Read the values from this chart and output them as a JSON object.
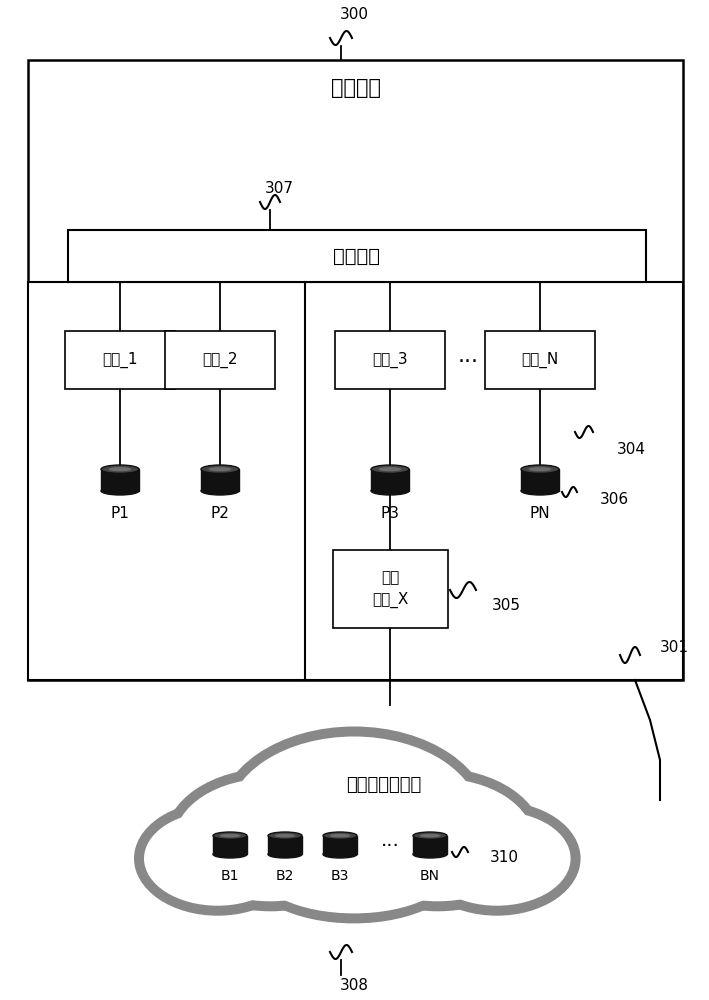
{
  "bg_color": "#ffffff",
  "title": "存储系统",
  "network_label": "网络接口",
  "cloud_label": "云或存储服务化",
  "node_labels": [
    "节点_1",
    "节点_2",
    "节点_3",
    "节点_N"
  ],
  "db_labels_top": [
    "P1",
    "P2",
    "P3",
    "PN"
  ],
  "db_labels_cloud": [
    "B1",
    "B2",
    "B3",
    "BN"
  ],
  "backup_label": "备用\n节点_X",
  "ref_300": "300",
  "ref_301": "301",
  "ref_304": "304",
  "ref_305": "305",
  "ref_306": "306",
  "ref_307": "307",
  "ref_308": "308",
  "ref_310": "310"
}
